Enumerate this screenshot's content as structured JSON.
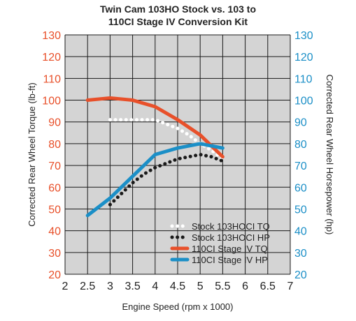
{
  "chart_data": {
    "type": "line",
    "title_line1": "Twin Cam 103HO Stock vs. 103 to",
    "title_line2": "110CI Stage IV Conversion Kit",
    "xlabel": "Engine Speed (rpm x 1000)",
    "ylabel_left": "Corrected Rear Wheel Torque (lb-ft)",
    "ylabel_right": "Corrected Rear Wheel Horsepower (hp)",
    "xlim": [
      2,
      7
    ],
    "ylim": [
      20,
      130
    ],
    "x_ticks": [
      "2",
      "2.5",
      "3",
      "3.5",
      "4",
      "4.5",
      "5",
      "5.5",
      "6",
      "6.5",
      "7"
    ],
    "y_ticks": [
      "20",
      "30",
      "40",
      "50",
      "60",
      "70",
      "80",
      "90",
      "100",
      "110",
      "120",
      "130"
    ],
    "grid": true,
    "legend_position": "bottom-right",
    "series": [
      {
        "name": "Stock 103HOCI TQ",
        "color": "#ffffff",
        "style": "dotted",
        "points": [
          [
            3.0,
            91
          ],
          [
            3.25,
            91
          ],
          [
            3.5,
            91
          ],
          [
            3.75,
            91
          ],
          [
            4.0,
            91
          ],
          [
            4.25,
            89
          ],
          [
            4.5,
            87
          ],
          [
            4.75,
            84
          ],
          [
            5.0,
            80
          ],
          [
            5.25,
            77
          ],
          [
            5.5,
            73
          ]
        ]
      },
      {
        "name": "Stock 103HOCI HP",
        "color": "#1a1a1a",
        "style": "dotted",
        "points": [
          [
            3.0,
            52
          ],
          [
            3.25,
            57
          ],
          [
            3.5,
            62
          ],
          [
            3.75,
            66
          ],
          [
            4.0,
            69
          ],
          [
            4.25,
            71
          ],
          [
            4.5,
            73
          ],
          [
            4.75,
            74
          ],
          [
            5.0,
            75
          ],
          [
            5.25,
            74
          ],
          [
            5.5,
            72
          ]
        ]
      },
      {
        "name": "110CI Stage IV TQ",
        "color": "#e8502a",
        "style": "solid",
        "points": [
          [
            2.5,
            100
          ],
          [
            3.0,
            101
          ],
          [
            3.5,
            100
          ],
          [
            4.0,
            97
          ],
          [
            4.5,
            91
          ],
          [
            5.0,
            84
          ],
          [
            5.5,
            74
          ]
        ]
      },
      {
        "name": "110CI Stage IV HP",
        "color": "#1b8fc7",
        "style": "solid",
        "points": [
          [
            2.5,
            47
          ],
          [
            3.0,
            55
          ],
          [
            3.5,
            65
          ],
          [
            4.0,
            75
          ],
          [
            4.5,
            78
          ],
          [
            5.0,
            80
          ],
          [
            5.5,
            78
          ]
        ]
      }
    ]
  }
}
